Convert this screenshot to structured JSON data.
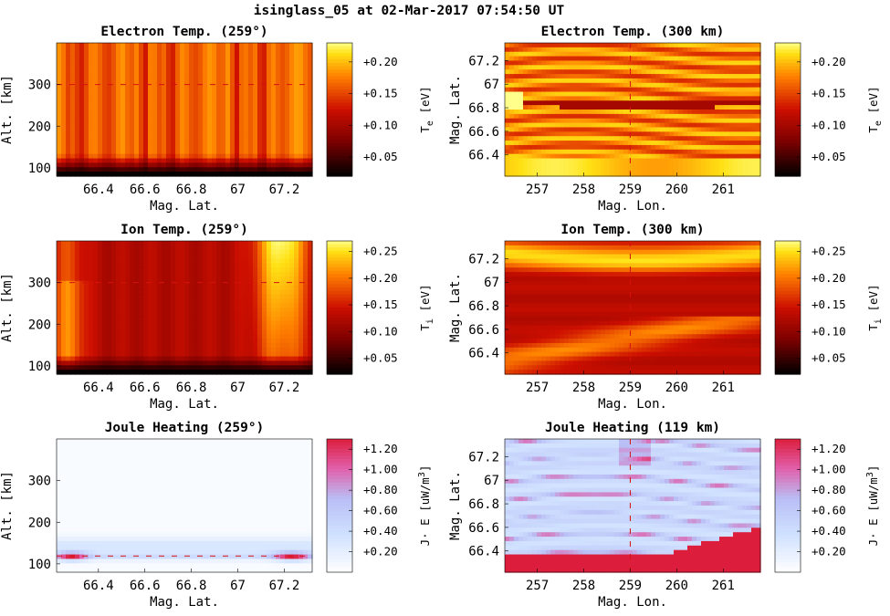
{
  "suptitle": "isinglass_05 at 02-Mar-2017 07:54:50 UT",
  "colors": {
    "hot_low": "#000000",
    "hot_mid": "#cc0000",
    "hot_high": "#ffff30",
    "cool_low": "#ffffff",
    "cool_mid": "#b9c8f5",
    "cool_high": "#dc1e3c"
  },
  "chart_data": [
    {
      "type": "heatmap",
      "id": "te_alt",
      "title": "Electron Temp. (259°)",
      "xlabel": "Mag. Lat.",
      "ylabel": "Alt. [km]",
      "xlim": [
        66.22,
        67.32
      ],
      "ylim": [
        80,
        400
      ],
      "xticks": [
        66.4,
        66.6,
        66.8,
        67,
        67.2
      ],
      "xticklabels": [
        "66.4",
        "66.6",
        "66.8",
        "67",
        "67.2"
      ],
      "yticks": [
        100,
        200,
        300
      ],
      "yticklabels": [
        "100",
        "200",
        "300"
      ],
      "colorbar": {
        "label": "T_e [eV]",
        "ticks": [
          "+0.05",
          "+0.10",
          "+0.15",
          "+0.20"
        ],
        "range": [
          0.02,
          0.23
        ]
      },
      "marker_line": {
        "axis": "y",
        "value": 300
      }
    },
    {
      "type": "heatmap",
      "id": "te_map",
      "title": "Electron Temp. (300 km)",
      "xlabel": "Mag. Lon.",
      "ylabel": "Mag. Lat.",
      "xlim": [
        256.3,
        261.8
      ],
      "ylim": [
        66.22,
        67.35
      ],
      "xticks": [
        257,
        258,
        259,
        260,
        261
      ],
      "xticklabels": [
        "257",
        "258",
        "259",
        "260",
        "261"
      ],
      "yticks": [
        66.4,
        66.6,
        66.8,
        67,
        67.2
      ],
      "yticklabels": [
        "66.4",
        "66.6",
        "66.8",
        "67",
        "67.2"
      ],
      "colorbar": {
        "label": "T_e [eV]",
        "ticks": [
          "+0.05",
          "+0.10",
          "+0.15",
          "+0.20"
        ],
        "range": [
          0.02,
          0.23
        ]
      },
      "marker_line": {
        "axis": "x",
        "value": 259
      }
    },
    {
      "type": "heatmap",
      "id": "ti_alt",
      "title": "Ion Temp. (259°)",
      "xlabel": "Mag. Lat.",
      "ylabel": "Alt. [km]",
      "xlim": [
        66.22,
        67.32
      ],
      "ylim": [
        80,
        400
      ],
      "xticks": [
        66.4,
        66.6,
        66.8,
        67,
        67.2
      ],
      "xticklabels": [
        "66.4",
        "66.6",
        "66.8",
        "67",
        "67.2"
      ],
      "yticks": [
        100,
        200,
        300
      ],
      "yticklabels": [
        "100",
        "200",
        "300"
      ],
      "colorbar": {
        "label": "T_i [eV]",
        "ticks": [
          "+0.05",
          "+0.10",
          "+0.15",
          "+0.20",
          "+0.25"
        ],
        "range": [
          0.02,
          0.27
        ]
      },
      "marker_line": {
        "axis": "y",
        "value": 300
      }
    },
    {
      "type": "heatmap",
      "id": "ti_map",
      "title": "Ion Temp. (300 km)",
      "xlabel": "Mag. Lon.",
      "ylabel": "Mag. Lat.",
      "xlim": [
        256.3,
        261.8
      ],
      "ylim": [
        66.22,
        67.35
      ],
      "xticks": [
        257,
        258,
        259,
        260,
        261
      ],
      "xticklabels": [
        "257",
        "258",
        "259",
        "260",
        "261"
      ],
      "yticks": [
        66.4,
        66.6,
        66.8,
        67,
        67.2
      ],
      "yticklabels": [
        "66.4",
        "66.6",
        "66.8",
        "67",
        "67.2"
      ],
      "colorbar": {
        "label": "T_i [eV]",
        "ticks": [
          "+0.05",
          "+0.10",
          "+0.15",
          "+0.20",
          "+0.25"
        ],
        "range": [
          0.02,
          0.27
        ]
      },
      "marker_line": {
        "axis": "x",
        "value": 259
      }
    },
    {
      "type": "heatmap",
      "id": "jh_alt",
      "title": "Joule Heating (259°)",
      "xlabel": "Mag. Lat.",
      "ylabel": "Alt. [km]",
      "xlim": [
        66.22,
        67.32
      ],
      "ylim": [
        80,
        400
      ],
      "xticks": [
        66.4,
        66.6,
        66.8,
        67,
        67.2
      ],
      "xticklabels": [
        "66.4",
        "66.6",
        "66.8",
        "67",
        "67.2"
      ],
      "yticks": [
        100,
        200,
        300
      ],
      "yticklabels": [
        "100",
        "200",
        "300"
      ],
      "colorbar": {
        "label": "J· E [uW/m^3]",
        "ticks": [
          "+0.20",
          "+0.40",
          "+0.60",
          "+0.80",
          "+1.00",
          "+1.20"
        ],
        "range": [
          0.0,
          1.3
        ]
      },
      "marker_line": {
        "axis": "y",
        "value": 119
      }
    },
    {
      "type": "heatmap",
      "id": "jh_map",
      "title": "Joule Heating (119 km)",
      "xlabel": "Mag. Lon.",
      "ylabel": "Mag. Lat.",
      "xlim": [
        256.3,
        261.8
      ],
      "ylim": [
        66.22,
        67.35
      ],
      "xticks": [
        257,
        258,
        259,
        260,
        261
      ],
      "xticklabels": [
        "257",
        "258",
        "259",
        "260",
        "261"
      ],
      "yticks": [
        66.4,
        66.6,
        66.8,
        67,
        67.2
      ],
      "yticklabels": [
        "66.4",
        "66.6",
        "66.8",
        "67",
        "67.2"
      ],
      "colorbar": {
        "label": "J· E [uW/m^3]",
        "ticks": [
          "+0.20",
          "+0.40",
          "+0.60",
          "+0.80",
          "+1.00",
          "+1.20"
        ],
        "range": [
          0.0,
          1.3
        ]
      },
      "marker_line": {
        "axis": "x",
        "value": 259
      }
    }
  ]
}
